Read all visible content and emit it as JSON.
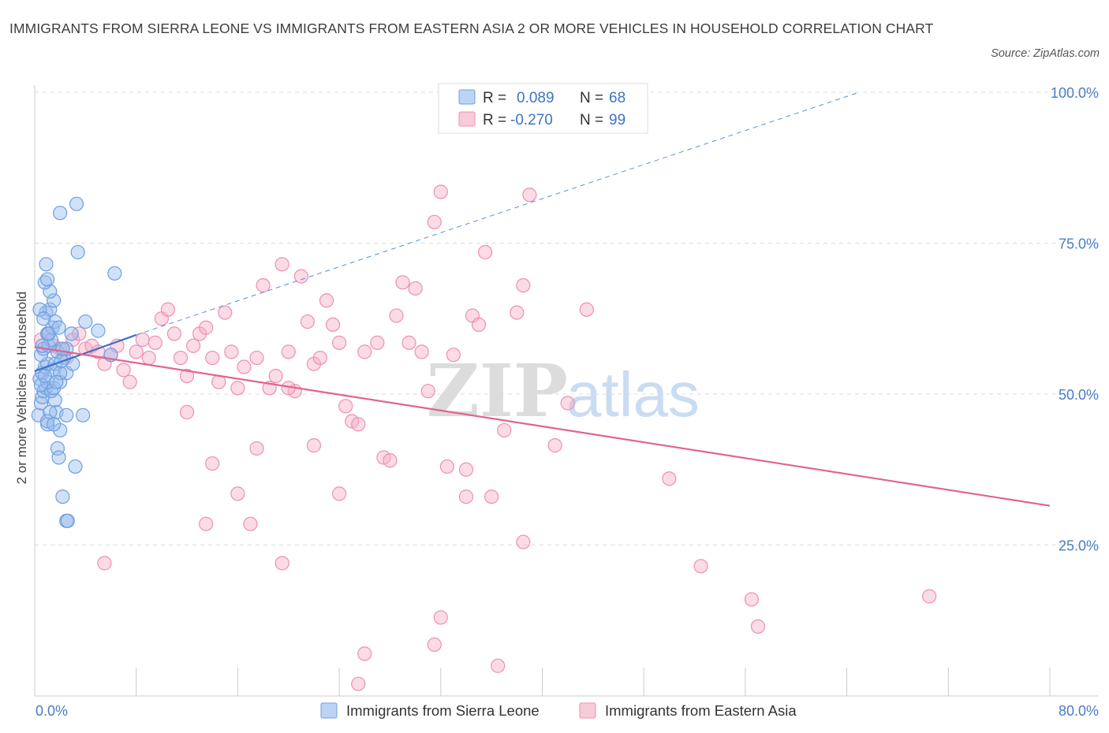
{
  "title": "IMMIGRANTS FROM SIERRA LEONE VS IMMIGRANTS FROM EASTERN ASIA 2 OR MORE VEHICLES IN HOUSEHOLD CORRELATION CHART",
  "source": "Source: ZipAtlas.com",
  "watermark": {
    "zip": "ZIP",
    "atlas": "atlas"
  },
  "legend": {
    "r_label": "R =",
    "n_label": "N =",
    "rows": [
      {
        "r": "0.089",
        "n": "68",
        "color": "#6f9fe0"
      },
      {
        "r": "-0.270",
        "n": "99",
        "color": "#ef8fb0"
      }
    ]
  },
  "chart_data": {
    "type": "scatter",
    "xlabel": "",
    "ylabel": "2 or more Vehicles in Household",
    "xlim": [
      0,
      80
    ],
    "ylim": [
      0,
      100
    ],
    "x_tick_labels": [
      "0.0%",
      "80.0%"
    ],
    "y_ticks": [
      25,
      50,
      75,
      100
    ],
    "y_tick_labels": [
      "25.0%",
      "50.0%",
      "75.0%",
      "100.0%"
    ],
    "grid": true,
    "legend_position": "top-center",
    "series": [
      {
        "name": "Immigrants from Sierra Leone",
        "color": "#6f9fe0",
        "points": [
          [
            0.3,
            46.5
          ],
          [
            0.5,
            48.5
          ],
          [
            0.6,
            49.5
          ],
          [
            0.7,
            50.5
          ],
          [
            0.9,
            51
          ],
          [
            0.4,
            52.5
          ],
          [
            0.6,
            53.5
          ],
          [
            0.8,
            54.5
          ],
          [
            1.0,
            55
          ],
          [
            0.5,
            56.5
          ],
          [
            0.7,
            57.5
          ],
          [
            1.1,
            58
          ],
          [
            1.3,
            59
          ],
          [
            1.0,
            60
          ],
          [
            1.4,
            61
          ],
          [
            1.6,
            62
          ],
          [
            0.9,
            63.5
          ],
          [
            1.2,
            64
          ],
          [
            1.5,
            65.5
          ],
          [
            1.2,
            67
          ],
          [
            0.8,
            68.5
          ],
          [
            1.0,
            69
          ],
          [
            0.9,
            71.5
          ],
          [
            2.0,
            80
          ],
          [
            3.3,
            81.5
          ],
          [
            3.4,
            73.5
          ],
          [
            6.3,
            70
          ],
          [
            4.0,
            62
          ],
          [
            5.0,
            60.5
          ],
          [
            6.0,
            56.5
          ],
          [
            1.6,
            49
          ],
          [
            1.7,
            47
          ],
          [
            2.0,
            44
          ],
          [
            1.8,
            41
          ],
          [
            1.9,
            39.5
          ],
          [
            3.2,
            38
          ],
          [
            2.2,
            33
          ],
          [
            2.5,
            29
          ],
          [
            2.6,
            29
          ],
          [
            1.0,
            45
          ],
          [
            1.3,
            50.5
          ],
          [
            1.5,
            51
          ],
          [
            2.0,
            52
          ],
          [
            2.5,
            53.5
          ],
          [
            3.0,
            55
          ],
          [
            2.3,
            56
          ],
          [
            1.8,
            57
          ],
          [
            2.5,
            57.5
          ],
          [
            1.4,
            54
          ],
          [
            1.0,
            52
          ],
          [
            0.5,
            51.5
          ],
          [
            0.8,
            53
          ],
          [
            1.2,
            47
          ],
          [
            1.0,
            45.5
          ],
          [
            1.5,
            45
          ],
          [
            2.5,
            46.5
          ],
          [
            3.8,
            46.5
          ],
          [
            1.6,
            55
          ],
          [
            2.0,
            53.5
          ],
          [
            1.7,
            52
          ],
          [
            2.1,
            55.5
          ],
          [
            2.2,
            57.5
          ],
          [
            0.6,
            58
          ],
          [
            1.1,
            60
          ],
          [
            1.9,
            61
          ],
          [
            2.9,
            60
          ],
          [
            0.4,
            64
          ],
          [
            0.7,
            62.5
          ]
        ],
        "trend": {
          "x": [
            0,
            8
          ],
          "y": [
            53.8,
            59.8
          ],
          "dashed_x": [
            8,
            65
          ],
          "dashed_y": [
            59.8,
            100
          ]
        }
      },
      {
        "name": "Immigrants from Eastern Asia",
        "color": "#ef8fb0",
        "points": [
          [
            0.5,
            59
          ],
          [
            1.0,
            60
          ],
          [
            1.5,
            58
          ],
          [
            2.0,
            57.5
          ],
          [
            2.5,
            56
          ],
          [
            3.0,
            59
          ],
          [
            3.5,
            60
          ],
          [
            4.0,
            57.5
          ],
          [
            4.5,
            58
          ],
          [
            5.0,
            57
          ],
          [
            5.5,
            55
          ],
          [
            6.0,
            56.5
          ],
          [
            6.5,
            58
          ],
          [
            7.0,
            54
          ],
          [
            7.5,
            52
          ],
          [
            8.0,
            57
          ],
          [
            8.5,
            59
          ],
          [
            9.0,
            56
          ],
          [
            9.5,
            58.5
          ],
          [
            10.0,
            62.5
          ],
          [
            10.5,
            64
          ],
          [
            11.0,
            60
          ],
          [
            11.5,
            56
          ],
          [
            12.0,
            53
          ],
          [
            12.5,
            58
          ],
          [
            13.0,
            60
          ],
          [
            13.5,
            61
          ],
          [
            14.0,
            56
          ],
          [
            14.5,
            52
          ],
          [
            15.0,
            63.5
          ],
          [
            15.5,
            57
          ],
          [
            16.0,
            51
          ],
          [
            16.5,
            54.5
          ],
          [
            17.5,
            56
          ],
          [
            18.0,
            68
          ],
          [
            18.5,
            51
          ],
          [
            19.0,
            53
          ],
          [
            19.5,
            71.5
          ],
          [
            20.0,
            57
          ],
          [
            20.5,
            50.5
          ],
          [
            21.0,
            69.5
          ],
          [
            21.5,
            62
          ],
          [
            22.0,
            55
          ],
          [
            22.5,
            56
          ],
          [
            23.0,
            65.5
          ],
          [
            23.5,
            61.5
          ],
          [
            24.0,
            58.5
          ],
          [
            24.5,
            48
          ],
          [
            25.0,
            45.5
          ],
          [
            26.0,
            57
          ],
          [
            27.0,
            58.5
          ],
          [
            27.5,
            39.5
          ],
          [
            28.0,
            39
          ],
          [
            28.5,
            63
          ],
          [
            29.0,
            68.5
          ],
          [
            29.5,
            58.5
          ],
          [
            30.0,
            67.5
          ],
          [
            30.5,
            57
          ],
          [
            31.0,
            50.5
          ],
          [
            31.5,
            78.5
          ],
          [
            32.0,
            83.5
          ],
          [
            33.0,
            56.5
          ],
          [
            34.0,
            37.5
          ],
          [
            34.5,
            63
          ],
          [
            35.0,
            61.5
          ],
          [
            35.5,
            73.5
          ],
          [
            36.0,
            33
          ],
          [
            37.0,
            44
          ],
          [
            38.5,
            68
          ],
          [
            39.0,
            83
          ],
          [
            38.5,
            25.5
          ],
          [
            38.0,
            63.5
          ],
          [
            41.0,
            41.5
          ],
          [
            42.0,
            48.5
          ],
          [
            43.5,
            64
          ],
          [
            50.0,
            36
          ],
          [
            52.5,
            21.5
          ],
          [
            56.5,
            16
          ],
          [
            57.0,
            11.5
          ],
          [
            70.5,
            16.5
          ],
          [
            5.5,
            22
          ],
          [
            13.5,
            28.5
          ],
          [
            17.0,
            28.5
          ],
          [
            19.5,
            22
          ],
          [
            16.0,
            33.5
          ],
          [
            14.0,
            38.5
          ],
          [
            12.0,
            47
          ],
          [
            22.0,
            41.5
          ],
          [
            24.0,
            33.5
          ],
          [
            25.5,
            45
          ],
          [
            32.5,
            38
          ],
          [
            34.0,
            33
          ],
          [
            32.0,
            13
          ],
          [
            31.5,
            8.5
          ],
          [
            26.0,
            7
          ],
          [
            25.5,
            2
          ],
          [
            36.5,
            5
          ],
          [
            17.5,
            41
          ],
          [
            20.0,
            51
          ]
        ],
        "trend": {
          "x": [
            0,
            80
          ],
          "y": [
            57.8,
            31.5
          ]
        }
      }
    ]
  }
}
